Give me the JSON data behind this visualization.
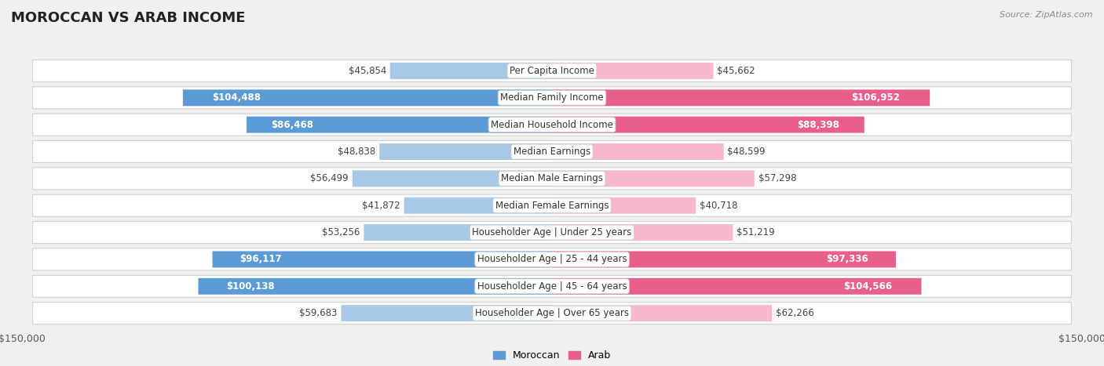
{
  "title": "MOROCCAN VS ARAB INCOME",
  "source": "Source: ZipAtlas.com",
  "categories": [
    "Per Capita Income",
    "Median Family Income",
    "Median Household Income",
    "Median Earnings",
    "Median Male Earnings",
    "Median Female Earnings",
    "Householder Age | Under 25 years",
    "Householder Age | 25 - 44 years",
    "Householder Age | 45 - 64 years",
    "Householder Age | Over 65 years"
  ],
  "moroccan_values": [
    45854,
    104488,
    86468,
    48838,
    56499,
    41872,
    53256,
    96117,
    100138,
    59683
  ],
  "arab_values": [
    45662,
    106952,
    88398,
    48599,
    57298,
    40718,
    51219,
    97336,
    104566,
    62266
  ],
  "moroccan_light": "#a8c8e8",
  "moroccan_dark": "#5b9bd5",
  "arab_light": "#f8b8cc",
  "arab_dark": "#e8608a",
  "max_value": 150000,
  "background_color": "#f0f0f0",
  "row_bg": "#f8f8f8",
  "threshold": 70000,
  "title_fontsize": 13,
  "label_fontsize": 8.5,
  "value_fontsize": 8.5
}
